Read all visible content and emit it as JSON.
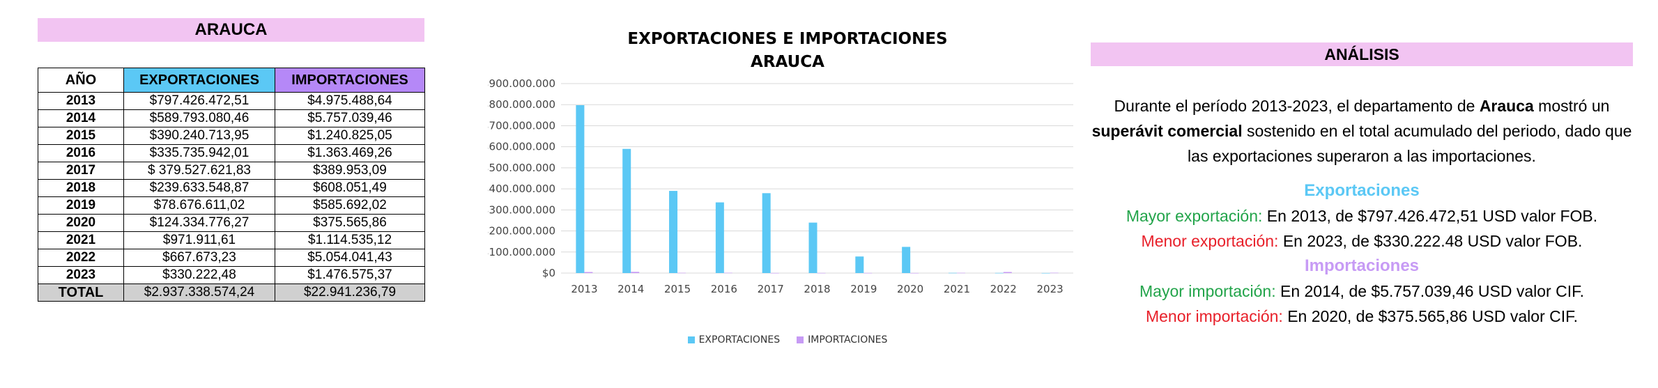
{
  "table": {
    "title": "ARAUCA",
    "headers": [
      "AÑO",
      "EXPORTACIONES",
      "IMPORTACIONES"
    ],
    "rows": [
      [
        "2013",
        "$797.426.472,51",
        "$4.975.488,64"
      ],
      [
        "2014",
        "$589.793.080,46",
        "$5.757.039,46"
      ],
      [
        "2015",
        "$390.240.713,95",
        "$1.240.825,05"
      ],
      [
        "2016",
        "$335.735.942,01",
        "$1.363.469,26"
      ],
      [
        "2017",
        "$ 379.527.621,83",
        "$389.953,09"
      ],
      [
        "2018",
        "$239.633.548,87",
        "$608.051,49"
      ],
      [
        "2019",
        "$78.676.611,02",
        "$585.692,02"
      ],
      [
        "2020",
        "$124.334.776,27",
        "$375.565,86"
      ],
      [
        "2021",
        "$971.911,61",
        "$1.114.535,12"
      ],
      [
        "2022",
        "$667.673,23",
        "$5.054.041,43"
      ],
      [
        "2023",
        "$330.222,48",
        "$1.476.575,37"
      ]
    ],
    "total": [
      "TOTAL",
      "$2.937.338.574,24",
      "$22.941.236,79"
    ]
  },
  "chart_data": {
    "type": "bar",
    "title": "EXPORTACIONES E IMPORTACIONES",
    "subtitle": "ARAUCA",
    "categories": [
      "2013",
      "2014",
      "2015",
      "2016",
      "2017",
      "2018",
      "2019",
      "2020",
      "2021",
      "2022",
      "2023"
    ],
    "series": [
      {
        "name": "EXPORTACIONES",
        "color": "#5bc8f5",
        "values": [
          797426472.51,
          589793080.46,
          390240713.95,
          335735942.01,
          379527621.83,
          239633548.87,
          78676611.02,
          124334776.27,
          971911.61,
          667673.23,
          330222.48
        ]
      },
      {
        "name": "IMPORTACIONES",
        "color": "#c79bf5",
        "values": [
          4975488.64,
          5757039.46,
          1240825.05,
          1363469.26,
          389953.09,
          608051.49,
          585692.02,
          375565.86,
          1114535.12,
          5054041.43,
          1476575.37
        ]
      }
    ],
    "ylim": [
      0,
      900000000
    ],
    "yticks": [
      {
        "value": 0,
        "label": "$0"
      },
      {
        "value": 100000000,
        "label": "$100.000.000"
      },
      {
        "value": 200000000,
        "label": "$200.000.000"
      },
      {
        "value": 300000000,
        "label": "$300.000.000"
      },
      {
        "value": 400000000,
        "label": "$400.000.000"
      },
      {
        "value": 500000000,
        "label": "$500.000.000"
      },
      {
        "value": 600000000,
        "label": "$600.000.000"
      },
      {
        "value": 700000000,
        "label": "$700.000.000"
      },
      {
        "value": 800000000,
        "label": "$800.000.000"
      },
      {
        "value": 900000000,
        "label": "$900.000.000"
      }
    ],
    "grid": true,
    "legend": "bottom"
  },
  "analysis": {
    "title": "ANÁLISIS",
    "intro_1": "Durante el período 2013-2023, el departamento de ",
    "intro_bold_1": "Arauca",
    "intro_2": " mostró un ",
    "intro_bold_2": "superávit comercial",
    "intro_3": " sostenido en el total acumulado del periodo, dado que las exportaciones superaron a las importaciones.",
    "exp_heading": "Exportaciones",
    "exp_max_label": "Mayor exportación:",
    "exp_max_text": " En 2013, de $797.426.472,51 USD valor FOB.",
    "exp_min_label": "Menor exportación:",
    "exp_min_text": " En 2023, de $330.222.48 USD valor FOB.",
    "imp_heading": "Importaciones",
    "imp_max_label": "Mayor importación:",
    "imp_max_text": " En 2014, de $5.757.039,46 USD valor CIF.",
    "imp_min_label": "Menor importación:",
    "imp_min_text": " En 2020, de $375.565,86 USD valor CIF."
  }
}
